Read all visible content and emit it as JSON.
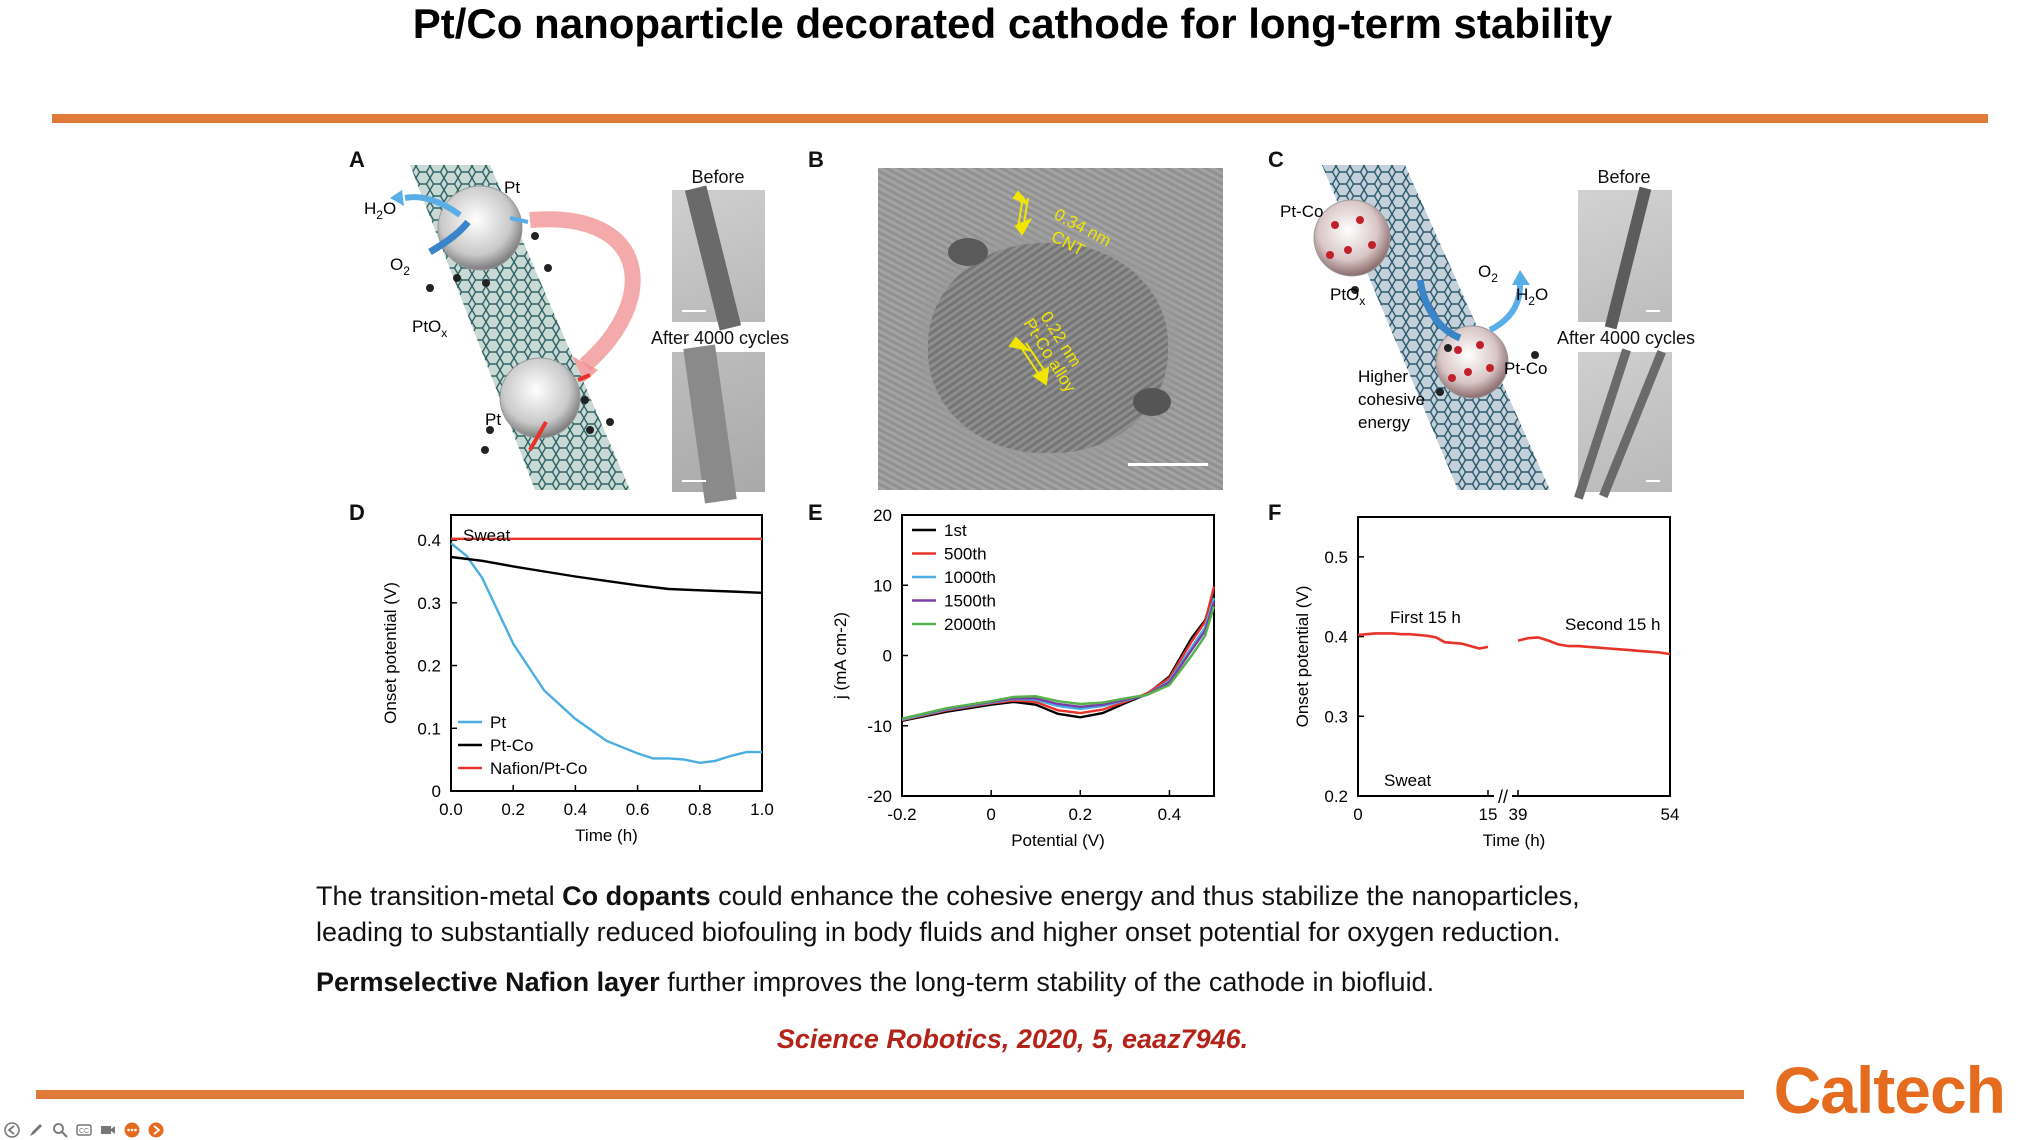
{
  "slide": {
    "title": "Pt/Co nanoparticle decorated cathode for long-term stability",
    "paragraph1": {
      "line1_pre": "The transition-metal ",
      "line1_bold": "Co dopants",
      "line1_post": " could enhance the cohesive energy and thus stabilize the nanoparticles,",
      "line2": "leading to substantially reduced biofouling in body fluids and higher onset potential for oxygen reduction."
    },
    "paragraph2": {
      "bold": "Permselective Nafion layer",
      "rest": " further improves the long-term stability of the cathode in biofluid."
    },
    "citation": "Science Robotics, 2020, 5, eaaz7946.",
    "logo": "Caltech"
  },
  "panels": {
    "A": {
      "label": "A",
      "h2o": "H",
      "h2o_sub": "2",
      "h2o_o": "O",
      "o2": "O",
      "o2_sub": "2",
      "pt_top": "Pt",
      "pt_bottom": "Pt",
      "ptox": "PtO",
      "ptox_sub": "x",
      "before": "Before",
      "after": "After 4000 cycles"
    },
    "B": {
      "label": "B",
      "lattice1_value": "0.34 nm",
      "lattice1_name": "CNT",
      "lattice2_value": "0.22 nm",
      "lattice2_name": "Pt-Co alloy"
    },
    "C": {
      "label": "C",
      "ptco_top": "Pt-Co",
      "ptco_bottom": "Pt-Co",
      "ptox": "PtO",
      "ptox_sub": "x",
      "o2": "O",
      "o2_sub": "2",
      "h2o": "H",
      "h2o_sub": "2",
      "h2o_o": "O",
      "cohesive_1": "Higher",
      "cohesive_2": "cohesive",
      "cohesive_3": "energy",
      "before": "Before",
      "after": "After 4000 cycles"
    },
    "D": {
      "label": "D"
    },
    "E": {
      "label": "E"
    },
    "F": {
      "label": "F"
    }
  },
  "chart_data": [
    {
      "panel": "D",
      "type": "line",
      "xlabel": "Time (h)",
      "ylabel": "Onset potential (V)",
      "xlim": [
        0,
        1.0
      ],
      "ylim": [
        0,
        0.44
      ],
      "xticks": [
        "0.0",
        "0.2",
        "0.4",
        "0.6",
        "0.8",
        "1.0"
      ],
      "xtick_values": [
        0,
        0.2,
        0.4,
        0.6,
        0.8,
        1.0
      ],
      "yticks": [
        "0",
        "0.1",
        "0.2",
        "0.3",
        "0.4"
      ],
      "ytick_values": [
        0,
        0.1,
        0.2,
        0.3,
        0.4
      ],
      "annotation": "Sweat",
      "legend_position": "bottom-left",
      "series": [
        {
          "name": "Pt",
          "color": "#4aaee3",
          "x": [
            0,
            0.05,
            0.1,
            0.2,
            0.3,
            0.4,
            0.5,
            0.6,
            0.65,
            0.7,
            0.75,
            0.8,
            0.85,
            0.9,
            0.95,
            1.0
          ],
          "y": [
            0.395,
            0.375,
            0.34,
            0.235,
            0.16,
            0.115,
            0.08,
            0.06,
            0.052,
            0.052,
            0.05,
            0.045,
            0.048,
            0.056,
            0.062,
            0.062
          ]
        },
        {
          "name": "Pt-Co",
          "color": "#000000",
          "x": [
            0,
            0.1,
            0.2,
            0.3,
            0.4,
            0.5,
            0.6,
            0.7,
            0.8,
            0.9,
            1.0
          ],
          "y": [
            0.373,
            0.367,
            0.358,
            0.35,
            0.342,
            0.335,
            0.328,
            0.322,
            0.32,
            0.318,
            0.316
          ]
        },
        {
          "name": "Nafion/Pt-Co",
          "color": "#e8332a",
          "x": [
            0,
            0.5,
            1.0
          ],
          "y": [
            0.402,
            0.402,
            0.402
          ]
        }
      ]
    },
    {
      "panel": "E",
      "type": "line",
      "xlabel": "Potential (V)",
      "ylabel": "j (mA cm-2)",
      "xlim": [
        -0.2,
        0.5
      ],
      "ylim": [
        -20,
        20
      ],
      "xticks": [
        "-0.2",
        "0",
        "0.2",
        "0.4"
      ],
      "xtick_values": [
        -0.2,
        0,
        0.2,
        0.4
      ],
      "yticks": [
        "-20",
        "-10",
        "0",
        "10",
        "20"
      ],
      "ytick_values": [
        -20,
        -10,
        0,
        10,
        20
      ],
      "legend_position": "top-left",
      "series": [
        {
          "name": "1st",
          "color": "#000000",
          "x": [
            -0.2,
            -0.1,
            0,
            0.05,
            0.1,
            0.15,
            0.2,
            0.25,
            0.3,
            0.35,
            0.4,
            0.45,
            0.48,
            0.5
          ],
          "y": [
            -9.3,
            -8,
            -7,
            -6.6,
            -7,
            -8.3,
            -8.8,
            -8.2,
            -6.8,
            -5.5,
            -3,
            2.5,
            5,
            9
          ]
        },
        {
          "name": "500th",
          "color": "#e8332a",
          "x": [
            -0.2,
            -0.1,
            0,
            0.05,
            0.1,
            0.15,
            0.2,
            0.25,
            0.3,
            0.35,
            0.4,
            0.45,
            0.48,
            0.5
          ],
          "y": [
            -9.2,
            -7.8,
            -6.8,
            -6.4,
            -6.6,
            -7.8,
            -8.2,
            -7.7,
            -6.6,
            -5.4,
            -3.2,
            2,
            4.8,
            9.8
          ]
        },
        {
          "name": "1000th",
          "color": "#4aaee3",
          "x": [
            -0.2,
            -0.1,
            0,
            0.05,
            0.1,
            0.15,
            0.2,
            0.25,
            0.3,
            0.35,
            0.4,
            0.45,
            0.48,
            0.5
          ],
          "y": [
            -9.1,
            -7.7,
            -6.7,
            -6.2,
            -6.3,
            -7.2,
            -7.6,
            -7.2,
            -6.4,
            -5.6,
            -3.6,
            1.2,
            4,
            8.2
          ]
        },
        {
          "name": "1500th",
          "color": "#7a3ea8",
          "x": [
            -0.2,
            -0.1,
            0,
            0.05,
            0.1,
            0.15,
            0.2,
            0.25,
            0.3,
            0.35,
            0.4,
            0.45,
            0.48,
            0.5
          ],
          "y": [
            -9,
            -7.6,
            -6.6,
            -6.1,
            -6.1,
            -6.9,
            -7.3,
            -7,
            -6.3,
            -5.6,
            -3.8,
            0.8,
            3.5,
            7.6
          ]
        },
        {
          "name": "2000th",
          "color": "#56b24a",
          "x": [
            -0.2,
            -0.1,
            0,
            0.05,
            0.1,
            0.15,
            0.2,
            0.25,
            0.3,
            0.35,
            0.4,
            0.45,
            0.48,
            0.5
          ],
          "y": [
            -9,
            -7.5,
            -6.5,
            -5.9,
            -5.8,
            -6.5,
            -6.9,
            -6.7,
            -6.1,
            -5.6,
            -4.2,
            0,
            2.8,
            7
          ]
        }
      ]
    },
    {
      "panel": "F",
      "type": "line",
      "xlabel": "Time (h)",
      "ylabel": "Onset potential (V)",
      "xlim_segments": [
        [
          0,
          15
        ],
        [
          39,
          54
        ]
      ],
      "ylim": [
        0.2,
        0.55
      ],
      "xticks": [
        "0",
        "15",
        "39",
        "54"
      ],
      "xtick_values": [
        0,
        15,
        39,
        54
      ],
      "yticks": [
        "0.2",
        "0.3",
        "0.4",
        "0.5"
      ],
      "ytick_values": [
        0.2,
        0.3,
        0.4,
        0.5
      ],
      "annotation": "Sweat",
      "axis_break": "//",
      "series": [
        {
          "name": "First 15 h",
          "color": "#e8332a",
          "x": [
            0,
            1,
            2,
            3,
            4,
            5,
            6,
            7,
            8,
            9,
            10,
            11,
            12,
            13,
            14,
            15
          ],
          "y": [
            0.402,
            0.403,
            0.404,
            0.404,
            0.404,
            0.403,
            0.403,
            0.402,
            0.401,
            0.399,
            0.393,
            0.392,
            0.391,
            0.388,
            0.385,
            0.387
          ]
        },
        {
          "name": "Second 15 h",
          "color": "#e8332a",
          "x": [
            39,
            40,
            41,
            42,
            43,
            44,
            45,
            46,
            47,
            48,
            49,
            50,
            51,
            52,
            53,
            54
          ],
          "y": [
            0.395,
            0.398,
            0.399,
            0.395,
            0.39,
            0.388,
            0.388,
            0.387,
            0.386,
            0.385,
            0.384,
            0.383,
            0.382,
            0.381,
            0.38,
            0.378
          ]
        }
      ]
    }
  ],
  "toolbar": {
    "icons": [
      "back-arrow-icon",
      "pen-icon",
      "zoom-icon",
      "captions-icon",
      "camera-icon",
      "more-icon",
      "forward-arrow-icon"
    ]
  }
}
